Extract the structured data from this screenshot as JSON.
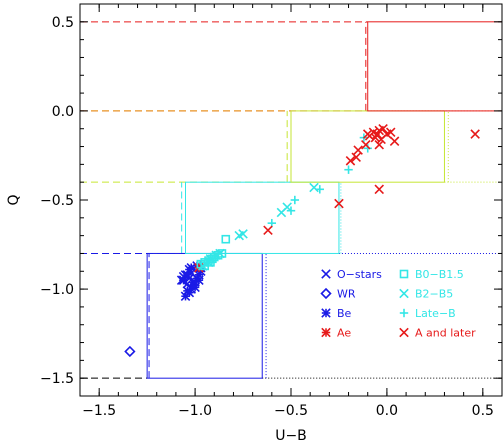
{
  "chart_data": {
    "type": "scatter",
    "title": "",
    "xlabel": "U−B",
    "ylabel": "Q",
    "xlim": [
      -1.6,
      0.6
    ],
    "ylim": [
      -1.6,
      0.6
    ],
    "x_ticks": [
      {
        "value": -1.5,
        "label": "−1.5"
      },
      {
        "value": -1.0,
        "label": "−1.0"
      },
      {
        "value": -0.5,
        "label": "−0.5"
      },
      {
        "value": 0.0,
        "label": "0.0"
      },
      {
        "value": 0.5,
        "label": "0.5"
      }
    ],
    "y_ticks": [
      {
        "value": -1.5,
        "label": "−1.5"
      },
      {
        "value": -1.0,
        "label": "−1.0"
      },
      {
        "value": -0.5,
        "label": "−0.5"
      },
      {
        "value": 0.0,
        "label": "0.0"
      },
      {
        "value": 0.5,
        "label": "0.5"
      }
    ],
    "grid": false,
    "legend_position": "lower-right",
    "series": [
      {
        "name": "O−stars",
        "marker": "x",
        "color": "#1a1ae6",
        "points": [
          [
            -1.05,
            -0.92
          ],
          [
            -1.03,
            -0.94
          ],
          [
            -1.07,
            -0.95
          ],
          [
            -1.02,
            -0.91
          ],
          [
            -1.04,
            -0.97
          ],
          [
            -1.06,
            -0.93
          ],
          [
            -1.01,
            -0.96
          ]
        ]
      },
      {
        "name": "WR",
        "marker": "diamond",
        "color": "#1a1ae6",
        "points": [
          [
            -1.34,
            -1.35
          ]
        ]
      },
      {
        "name": "Be",
        "marker": "asterisk",
        "color": "#1a1ae6",
        "points": [
          [
            -1.05,
            -1.04
          ],
          [
            -1.03,
            -1.02
          ],
          [
            -1.02,
            -1.0
          ],
          [
            -1.01,
            -0.98
          ],
          [
            -1.0,
            -0.96
          ],
          [
            -0.99,
            -0.94
          ],
          [
            -0.98,
            -0.92
          ],
          [
            -0.97,
            -0.9
          ],
          [
            -1.04,
            -1.01
          ],
          [
            -1.0,
            -0.99
          ],
          [
            -0.98,
            -0.95
          ],
          [
            -1.02,
            -0.88
          ],
          [
            -1.03,
            -0.89
          ],
          [
            -0.99,
            -0.87
          ],
          [
            -1.04,
            -0.92
          ],
          [
            -1.06,
            -0.95
          ],
          [
            -0.97,
            -0.88
          ]
        ]
      },
      {
        "name": "Ae",
        "marker": "asterisk",
        "color": "#e61a1a",
        "points": [
          [
            -0.98,
            -0.88
          ]
        ]
      },
      {
        "name": "B0−B1.5",
        "marker": "square",
        "color": "#33e6e6",
        "points": [
          [
            -0.97,
            -0.86
          ],
          [
            -0.95,
            -0.85
          ],
          [
            -0.93,
            -0.84
          ],
          [
            -0.91,
            -0.83
          ],
          [
            -0.9,
            -0.82
          ],
          [
            -0.88,
            -0.81
          ],
          [
            -0.86,
            -0.8
          ],
          [
            -0.95,
            -0.87
          ],
          [
            -0.92,
            -0.85
          ],
          [
            -0.84,
            -0.72
          ]
        ]
      },
      {
        "name": "B2−B5",
        "marker": "x",
        "color": "#33e6e6",
        "points": [
          [
            -0.96,
            -0.87
          ],
          [
            -0.93,
            -0.85
          ],
          [
            -0.92,
            -0.83
          ],
          [
            -0.89,
            -0.81
          ],
          [
            -0.87,
            -0.8
          ],
          [
            -0.77,
            -0.7
          ],
          [
            -0.75,
            -0.69
          ],
          [
            -0.55,
            -0.57
          ],
          [
            -0.52,
            -0.54
          ],
          [
            -0.38,
            -0.43
          ]
        ]
      },
      {
        "name": "Late−B",
        "marker": "plus",
        "color": "#33e6e6",
        "points": [
          [
            -0.6,
            -0.63
          ],
          [
            -0.5,
            -0.56
          ],
          [
            -0.48,
            -0.5
          ],
          [
            -0.35,
            -0.44
          ],
          [
            -0.2,
            -0.33
          ],
          [
            -0.1,
            -0.21
          ],
          [
            -0.12,
            -0.15
          ]
        ]
      },
      {
        "name": "A and later",
        "marker": "x",
        "color": "#e61a1a",
        "points": [
          [
            -0.62,
            -0.67
          ],
          [
            -0.25,
            -0.52
          ],
          [
            -0.19,
            -0.28
          ],
          [
            -0.16,
            -0.26
          ],
          [
            -0.15,
            -0.22
          ],
          [
            -0.11,
            -0.19
          ],
          [
            -0.1,
            -0.13
          ],
          [
            -0.09,
            -0.14
          ],
          [
            -0.07,
            -0.12
          ],
          [
            -0.06,
            -0.15
          ],
          [
            -0.05,
            -0.13
          ],
          [
            -0.04,
            -0.11
          ],
          [
            -0.03,
            -0.16
          ],
          [
            -0.02,
            -0.1
          ],
          [
            0.0,
            -0.13
          ],
          [
            0.02,
            -0.12
          ],
          [
            0.04,
            -0.17
          ],
          [
            -0.04,
            -0.19
          ],
          [
            -0.04,
            -0.44
          ],
          [
            0.46,
            -0.13
          ]
        ]
      }
    ],
    "boxes": [
      {
        "x": [
          -1.25,
          -0.65
        ],
        "y": [
          -1.5,
          -0.8
        ],
        "color": "#1a1ae6"
      },
      {
        "x": [
          -1.05,
          -0.25
        ],
        "y": [
          -0.8,
          -0.4
        ],
        "color": "#33e6e6"
      },
      {
        "x": [
          -0.5,
          0.3
        ],
        "y": [
          -0.4,
          0.0
        ],
        "color": "#c6e633"
      },
      {
        "x": [
          -0.1,
          0.6
        ],
        "y": [
          0.0,
          0.5
        ],
        "color": "#e61a1a"
      }
    ],
    "dashed_lines": [
      {
        "y": 0.5,
        "x": [
          -1.6,
          -0.1
        ],
        "color": "#e61a1a"
      },
      {
        "y": 0.0,
        "x": [
          -1.6,
          -0.1
        ],
        "color": "#e61a1a"
      },
      {
        "y": 0.0,
        "x": [
          -1.6,
          -0.5
        ],
        "color": "#e6a01a"
      },
      {
        "y": -0.4,
        "x": [
          -1.6,
          -0.5
        ],
        "color": "#c6e633"
      },
      {
        "y": -0.8,
        "x": [
          -1.6,
          -1.05
        ],
        "color": "#33e6e6"
      },
      {
        "y": -0.8,
        "x": [
          -1.6,
          -1.25
        ],
        "color": "#1a1ae6"
      },
      {
        "y": -1.5,
        "x": [
          -1.6,
          -1.25
        ],
        "color": "#000000"
      },
      {
        "x": -0.11,
        "y": [
          0.0,
          0.5
        ],
        "color": "#e61a1a"
      },
      {
        "x": -0.52,
        "y": [
          -0.4,
          0.0
        ],
        "color": "#c6e633"
      },
      {
        "x": -1.07,
        "y": [
          -0.8,
          -0.4
        ],
        "color": "#33e6e6"
      },
      {
        "x": -1.24,
        "y": [
          -1.5,
          -0.8
        ],
        "color": "#1a1ae6"
      }
    ],
    "dotted_lines": [
      {
        "y": 0.0,
        "x": [
          -0.1,
          0.6
        ],
        "color": "#e6a01a"
      },
      {
        "y": -0.4,
        "x": [
          0.3,
          0.6
        ],
        "color": "#c6e633"
      },
      {
        "y": -0.8,
        "x": [
          -0.25,
          0.6
        ],
        "color": "#1a1ae6"
      },
      {
        "y": -1.5,
        "x": [
          -0.65,
          0.6
        ],
        "color": "#000000"
      },
      {
        "x": 0.32,
        "y": [
          -0.4,
          0.0
        ],
        "color": "#c6e633"
      },
      {
        "x": -0.24,
        "y": [
          -0.8,
          -0.4
        ],
        "color": "#33e6e6"
      },
      {
        "x": -0.63,
        "y": [
          -1.5,
          -0.8
        ],
        "color": "#1a1ae6"
      }
    ]
  }
}
